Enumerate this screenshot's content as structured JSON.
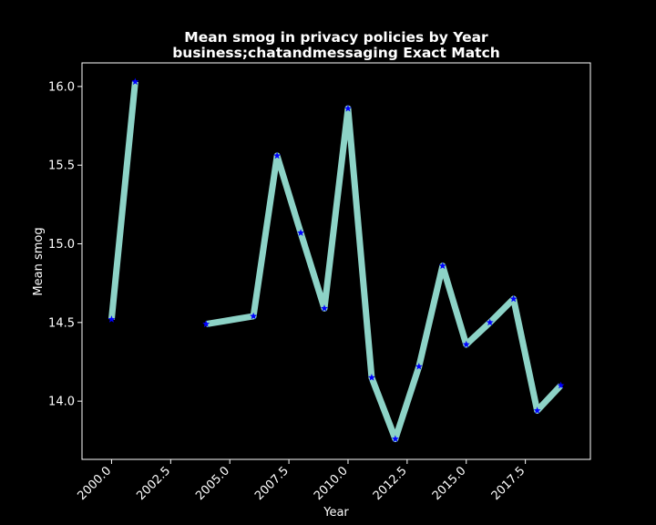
{
  "chart_data": {
    "type": "line",
    "title": "Mean smog in privacy policies by Year",
    "subtitle": "business;chatandmessaging Exact Match",
    "xlabel": "Year",
    "ylabel": "Mean smog",
    "xlim": [
      1998.75,
      2020.25
    ],
    "ylim": [
      13.63,
      16.15
    ],
    "x_ticks": [
      2000.0,
      2002.5,
      2005.0,
      2007.5,
      2010.0,
      2012.5,
      2015.0,
      2017.5
    ],
    "x_tick_labels": [
      "2000.0",
      "2002.5",
      "2005.0",
      "2007.5",
      "2010.0",
      "2012.5",
      "2015.0",
      "2017.5"
    ],
    "y_ticks": [
      14.0,
      14.5,
      15.0,
      15.5,
      16.0
    ],
    "y_tick_labels": [
      "14.0",
      "14.5",
      "15.0",
      "15.5",
      "16.0"
    ],
    "grid": false,
    "series": [
      {
        "x": [
          2000,
          2001,
          2002,
          2003,
          2004,
          2006,
          2007,
          2008,
          2009,
          2010,
          2011,
          2012,
          2013,
          2014,
          2015,
          2016,
          2017,
          2018,
          2019
        ],
        "values": [
          14.52,
          16.03,
          null,
          null,
          14.49,
          14.54,
          15.56,
          15.07,
          14.59,
          15.86,
          14.15,
          13.76,
          14.22,
          14.86,
          14.36,
          14.5,
          14.65,
          13.94,
          14.1
        ]
      }
    ],
    "line_color": "#8dd3c7",
    "marker_color": "#0000ff",
    "marker": "star",
    "background": "#000000",
    "axis_color": "#ffffff"
  }
}
